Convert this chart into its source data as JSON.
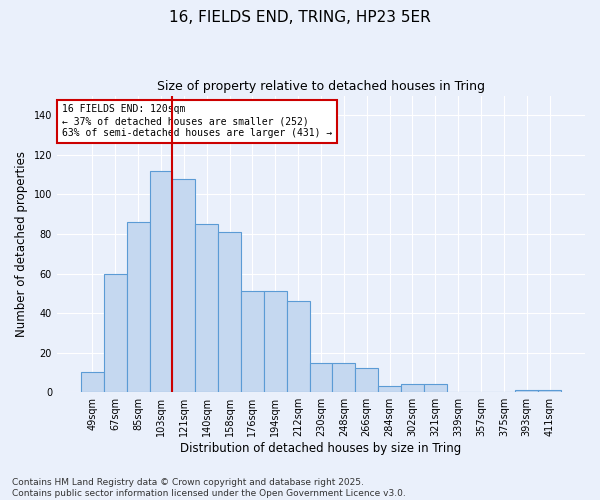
{
  "title": "16, FIELDS END, TRING, HP23 5ER",
  "subtitle": "Size of property relative to detached houses in Tring",
  "xlabel": "Distribution of detached houses by size in Tring",
  "ylabel": "Number of detached properties",
  "categories": [
    "49sqm",
    "67sqm",
    "85sqm",
    "103sqm",
    "121sqm",
    "140sqm",
    "158sqm",
    "176sqm",
    "194sqm",
    "212sqm",
    "230sqm",
    "248sqm",
    "266sqm",
    "284sqm",
    "302sqm",
    "321sqm",
    "339sqm",
    "357sqm",
    "375sqm",
    "393sqm",
    "411sqm"
  ],
  "values": [
    10,
    60,
    86,
    112,
    108,
    85,
    81,
    51,
    51,
    46,
    15,
    15,
    12,
    3,
    4,
    4,
    0,
    0,
    0,
    1,
    1
  ],
  "bar_color": "#c5d8f0",
  "bar_edge_color": "#5b9bd5",
  "ylim": [
    0,
    150
  ],
  "yticks": [
    0,
    20,
    40,
    60,
    80,
    100,
    120,
    140
  ],
  "vline_bin_index": 4,
  "vline_color": "#cc0000",
  "annotation_title": "16 FIELDS END: 120sqm",
  "annotation_line1": "← 37% of detached houses are smaller (252)",
  "annotation_line2": "63% of semi-detached houses are larger (431) →",
  "annotation_box_color": "#ffffff",
  "annotation_box_edge": "#cc0000",
  "footer": "Contains HM Land Registry data © Crown copyright and database right 2025.\nContains public sector information licensed under the Open Government Licence v3.0.",
  "background_color": "#eaf0fb",
  "grid_color": "#ffffff",
  "title_fontsize": 11,
  "subtitle_fontsize": 9,
  "axis_label_fontsize": 8.5,
  "tick_fontsize": 7,
  "annotation_fontsize": 7,
  "footer_fontsize": 6.5
}
